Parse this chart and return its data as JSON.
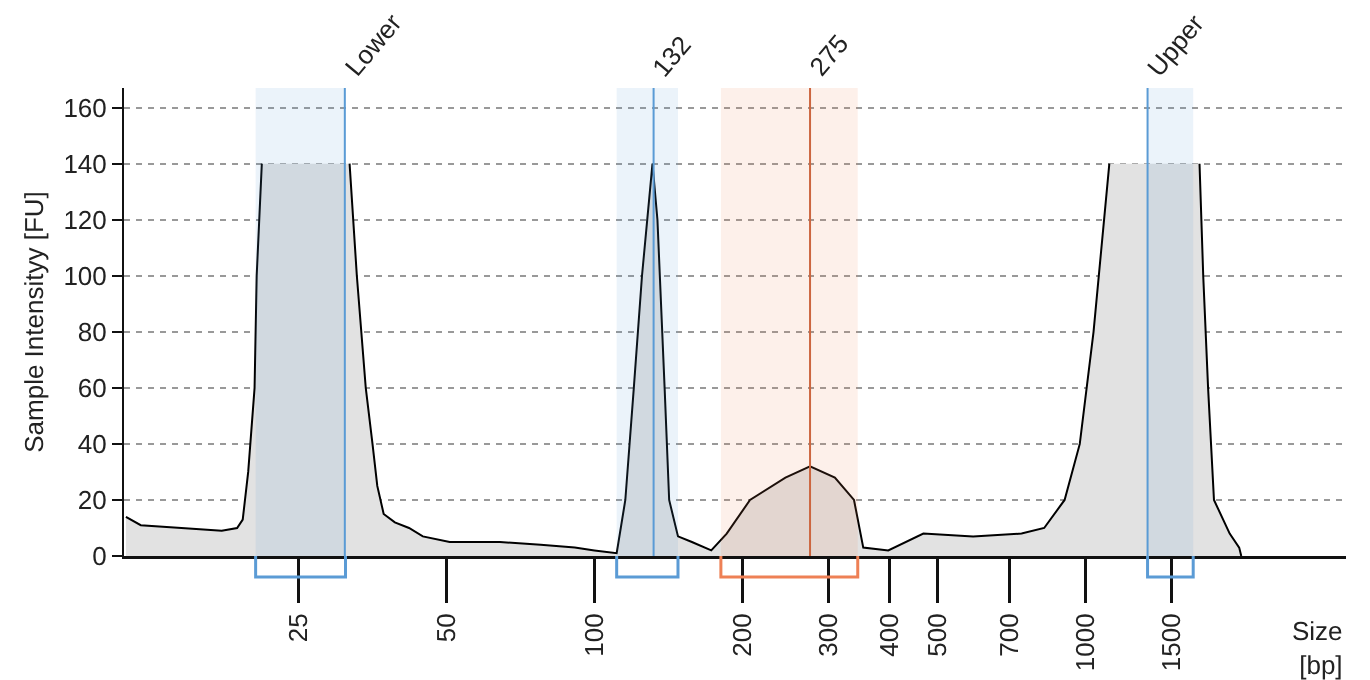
{
  "chart_data": {
    "type": "area",
    "xlabel": "Size [bp]",
    "ylabel": "Sample Intensityy [FU]",
    "x": [
      11.1,
      11.9,
      14.4,
      17.4,
      18.7,
      19.2,
      19.7,
      20.3,
      20.5,
      21.0,
      21.2,
      31.4,
      31.7,
      32.8,
      34.2,
      35.3,
      36.1,
      37.2,
      39.2,
      41.9,
      44.7,
      50.7,
      64.2,
      77.7,
      91.2,
      100,
      111,
      115.6,
      120.3,
      125,
      131.3,
      134.4,
      139,
      142,
      148,
      158,
      173,
      186,
      207.5,
      245,
      275,
      309,
      338,
      353,
      397,
      468,
      591,
      742,
      825,
      908,
      975,
      1040,
      1120,
      1160,
      1660,
      1710,
      1740,
      1780,
      1830,
      1970,
      2060,
      2080
    ],
    "series": [
      {
        "color": "#000000",
        "values": [
          14,
          11,
          10,
          9,
          10,
          13,
          30,
          60,
          100,
          140,
          null,
          null,
          140,
          100,
          60,
          40,
          25,
          15,
          12,
          10,
          7,
          5,
          5,
          4,
          3,
          2,
          1,
          20,
          60,
          100,
          140,
          120,
          60,
          20,
          7,
          5,
          2,
          8,
          20,
          28,
          32,
          28,
          20,
          3,
          2,
          8,
          7,
          8,
          10,
          20,
          40,
          80,
          140,
          null,
          null,
          140,
          100,
          60,
          20,
          8,
          3,
          0
        ]
      }
    ],
    "log": "x",
    "xlim": [
      11,
      3400
    ],
    "xticks": [
      25,
      50,
      100,
      200,
      300,
      400,
      500,
      700,
      1000,
      1500
    ],
    "ylim": [
      0,
      167
    ],
    "yticks": [
      0,
      20,
      40,
      60,
      80,
      100,
      120,
      140,
      160
    ],
    "grid": "y",
    "ref_lines": [
      {
        "axis": "x",
        "value": 31,
        "label": "Lower",
        "color": "#5b9bd5"
      },
      {
        "axis": "x",
        "value": 132,
        "label": "132",
        "color": "#5b9bd5"
      },
      {
        "axis": "x",
        "value": 275,
        "label": "275",
        "color": "#c8623e"
      },
      {
        "axis": "x",
        "value": 1340,
        "label": "Upper",
        "color": "#5b9bd5"
      }
    ],
    "bands": [
      {
        "axis": "x",
        "from": 20.4,
        "to": 31.1,
        "color": "#5b9bd5"
      },
      {
        "axis": "x",
        "from": 111,
        "to": 148,
        "color": "#5b9bd5"
      },
      {
        "axis": "x",
        "from": 181,
        "to": 344,
        "color": "#ee8055"
      },
      {
        "axis": "x",
        "from": 1340,
        "to": 1660,
        "color": "#5b9bd5"
      }
    ]
  }
}
